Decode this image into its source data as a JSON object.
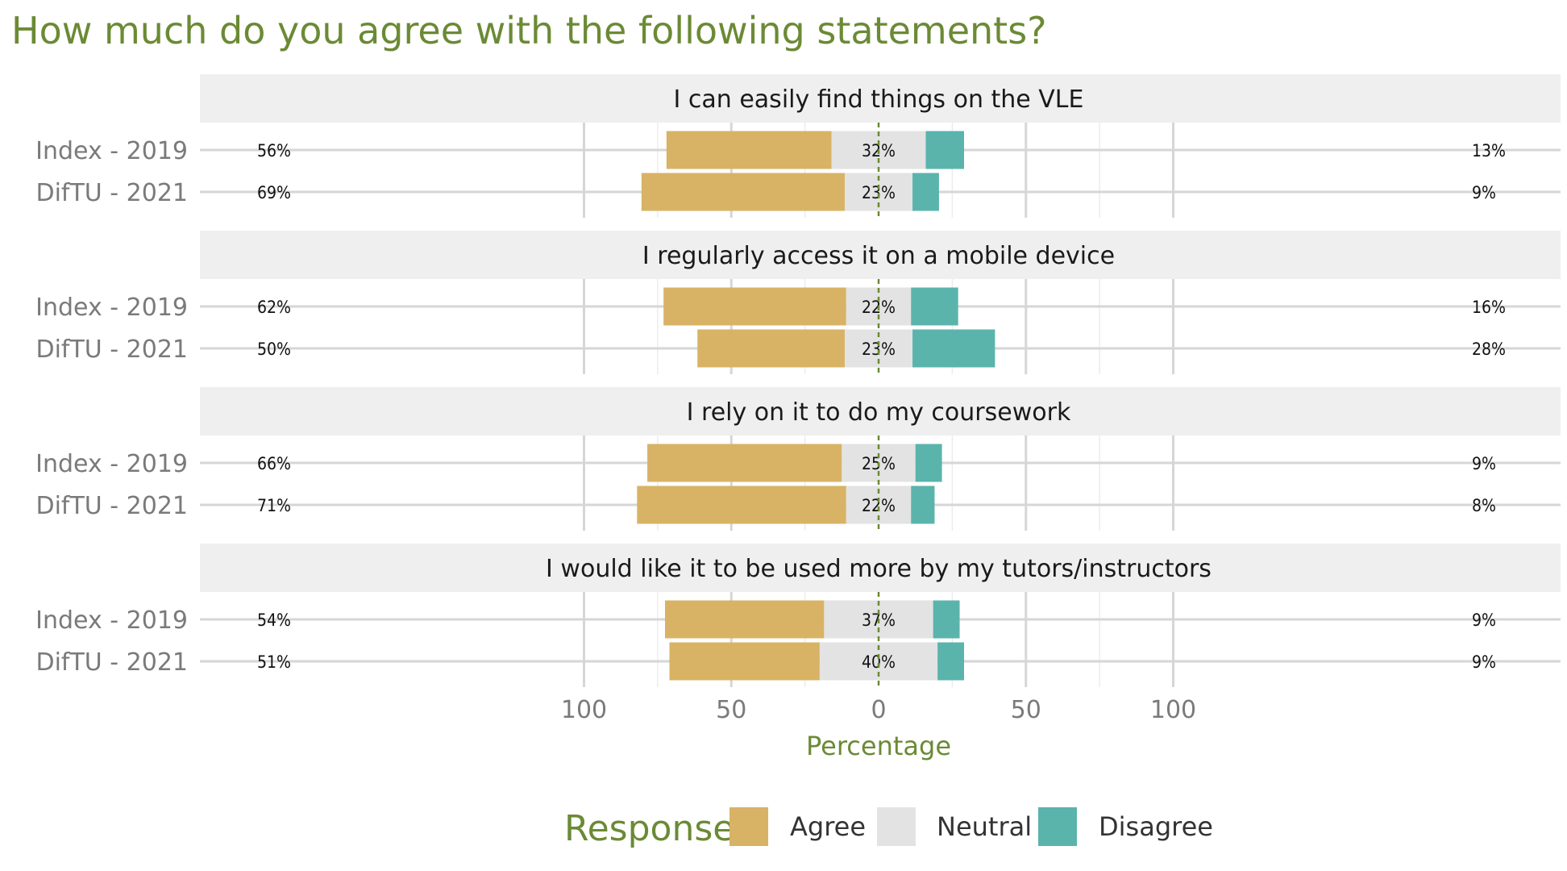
{
  "chart_data": {
    "type": "bar",
    "orientation": "horizontal-diverging",
    "title": "How much do you agree with the following statements?",
    "xlabel": "Percentage",
    "ylabel": "",
    "xlim": [
      -100,
      100
    ],
    "x_ticks": [
      "100",
      "50",
      "0",
      "50",
      "100"
    ],
    "x_tick_values": [
      -100,
      -50,
      0,
      50,
      100
    ],
    "categories": [
      "Index - 2019",
      "DifTU - 2021"
    ],
    "legend": {
      "title": "Response",
      "placement": "bottom",
      "items": [
        {
          "label": "Agree",
          "color": "#d8b365"
        },
        {
          "label": "Neutral",
          "color": "#e3e3e3"
        },
        {
          "label": "Disagree",
          "color": "#5ab4ac"
        }
      ]
    },
    "panels": [
      {
        "title": "I can easily find things on the VLE",
        "rows": [
          {
            "label": "Index - 2019",
            "agree": 56,
            "neutral": 32,
            "disagree": 13,
            "agree_label": "56%",
            "neutral_label": "32%",
            "disagree_label": "13%"
          },
          {
            "label": "DifTU - 2021",
            "agree": 69,
            "neutral": 23,
            "disagree": 9,
            "agree_label": "69%",
            "neutral_label": "23%",
            "disagree_label": "9%"
          }
        ]
      },
      {
        "title": "I regularly access it on a mobile device",
        "rows": [
          {
            "label": "Index - 2019",
            "agree": 62,
            "neutral": 22,
            "disagree": 16,
            "agree_label": "62%",
            "neutral_label": "22%",
            "disagree_label": "16%"
          },
          {
            "label": "DifTU - 2021",
            "agree": 50,
            "neutral": 23,
            "disagree": 28,
            "agree_label": "50%",
            "neutral_label": "23%",
            "disagree_label": "28%"
          }
        ]
      },
      {
        "title": "I rely on it to do my coursework",
        "rows": [
          {
            "label": "Index - 2019",
            "agree": 66,
            "neutral": 25,
            "disagree": 9,
            "agree_label": "66%",
            "neutral_label": "25%",
            "disagree_label": "9%"
          },
          {
            "label": "DifTU - 2021",
            "agree": 71,
            "neutral": 22,
            "disagree": 8,
            "agree_label": "71%",
            "neutral_label": "22%",
            "disagree_label": "8%"
          }
        ]
      },
      {
        "title": "I would like it to be used more by my tutors/instructors",
        "rows": [
          {
            "label": "Index - 2019",
            "agree": 54,
            "neutral": 37,
            "disagree": 9,
            "agree_label": "54%",
            "neutral_label": "37%",
            "disagree_label": "9%"
          },
          {
            "label": "DifTU - 2021",
            "agree": 51,
            "neutral": 40,
            "disagree": 9,
            "agree_label": "51%",
            "neutral_label": "40%",
            "disagree_label": "9%"
          }
        ]
      }
    ]
  }
}
